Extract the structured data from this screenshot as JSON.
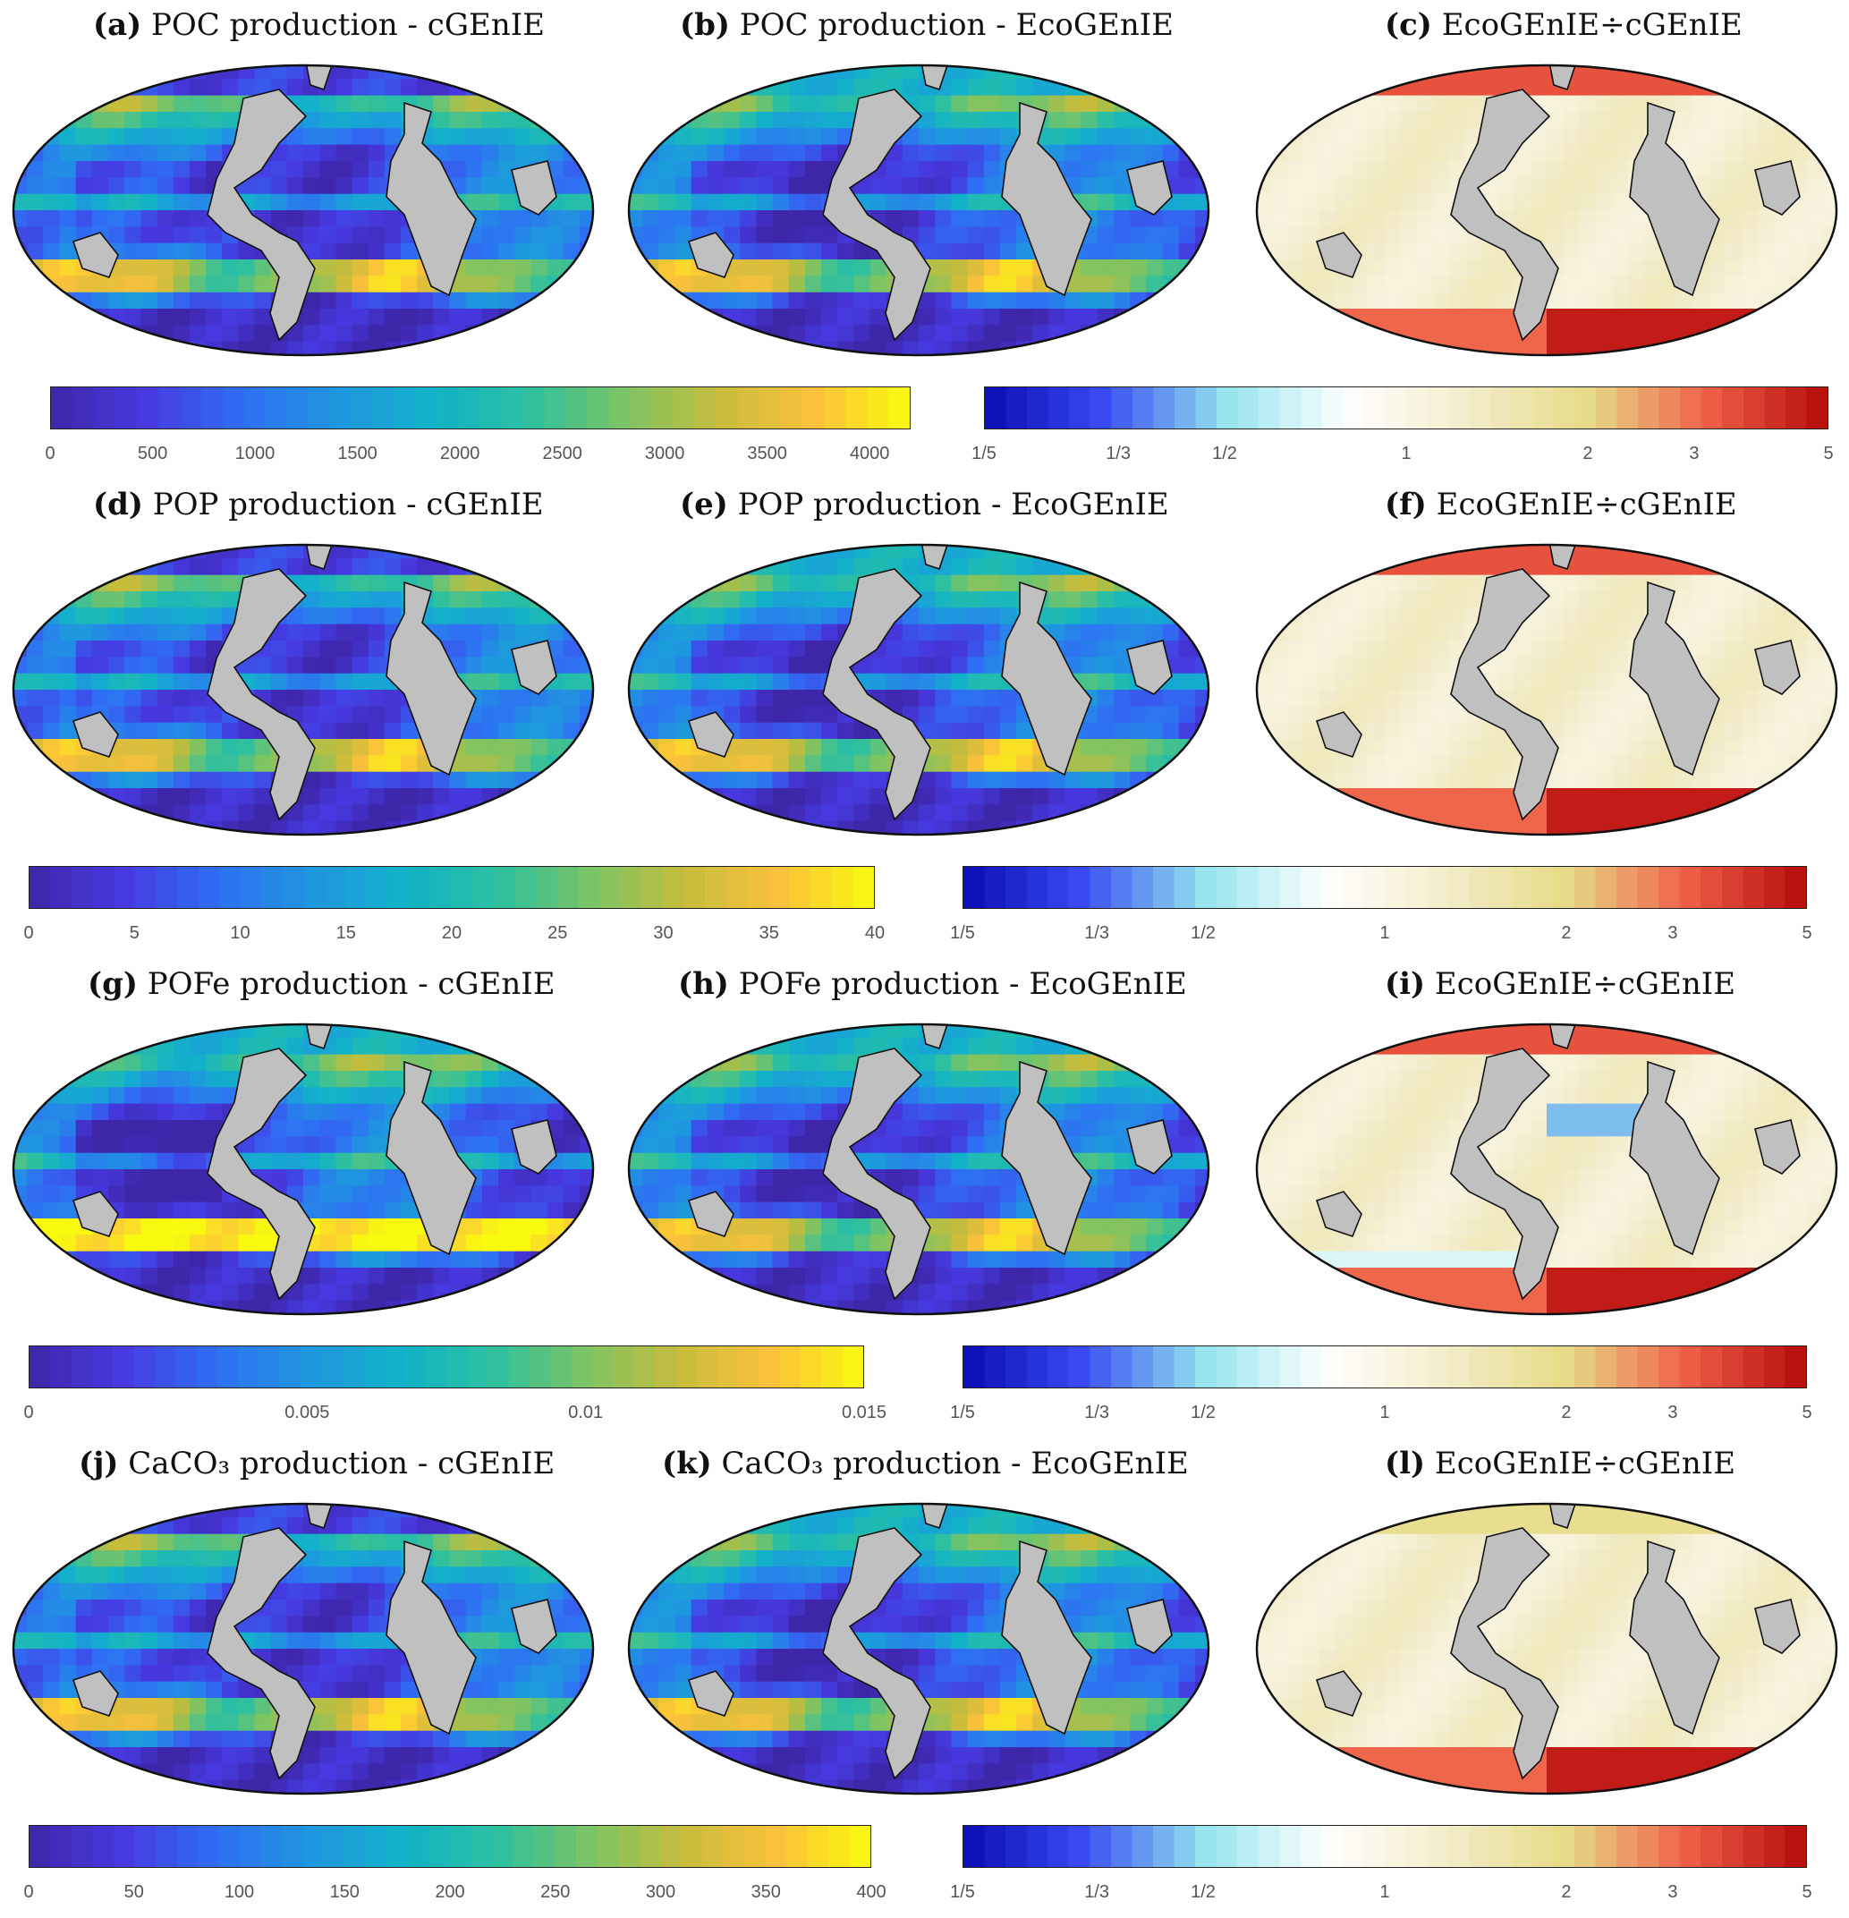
{
  "colormaps": {
    "parula": [
      "#3e26a8",
      "#4639e0",
      "#2f6ff4",
      "#1f96e0",
      "#12b2c9",
      "#2cc0a0",
      "#7cc464",
      "#c6bc3c",
      "#fcc13c",
      "#f9fb0e"
    ],
    "ratio": [
      "#0a0ab4",
      "#3a4df2",
      "#94e4ee",
      "#ffffff",
      "#f3eccb",
      "#e6dc88",
      "#f06048",
      "#b40a0a"
    ]
  },
  "land_color": "#c0c0c0",
  "rows": [
    {
      "titles": [
        {
          "letter": "(a)",
          "text": "POC production - cGEnIE"
        },
        {
          "letter": "(b)",
          "text": "POC production - EcoGEnIE"
        },
        {
          "letter": "(c)",
          "text": "EcoGEnIE÷cGEnIE"
        }
      ],
      "abs_ticks": [
        "0",
        "500",
        "1000",
        "1500",
        "2000",
        "2500",
        "3000",
        "3500",
        "4000"
      ],
      "abs_tick_values": [
        0,
        500,
        1000,
        1500,
        2000,
        2500,
        3000,
        3500,
        4000
      ],
      "abs_max": 4200,
      "ratio_ticks": [
        "1/5",
        "1/3",
        "1/2",
        "1",
        "2",
        "3",
        "5"
      ]
    },
    {
      "titles": [
        {
          "letter": "(d)",
          "text": "POP production - cGEnIE"
        },
        {
          "letter": "(e)",
          "text": "POP production - EcoGEnIE"
        },
        {
          "letter": "(f)",
          "text": "EcoGEnIE÷cGEnIE"
        }
      ],
      "abs_ticks": [
        "0",
        "5",
        "10",
        "15",
        "20",
        "25",
        "30",
        "35",
        "40"
      ],
      "abs_tick_values": [
        0,
        5,
        10,
        15,
        20,
        25,
        30,
        35,
        40
      ],
      "abs_max": 40,
      "ratio_ticks": [
        "1/5",
        "1/3",
        "1/2",
        "1",
        "2",
        "3",
        "5"
      ]
    },
    {
      "titles": [
        {
          "letter": "(g)",
          "text": "POFe production - cGEnIE"
        },
        {
          "letter": "(h)",
          "text": "POFe production - EcoGEnIE"
        },
        {
          "letter": "(i)",
          "text": "EcoGEnIE÷cGEnIE"
        }
      ],
      "abs_ticks": [
        "0",
        "0.005",
        "0.01",
        "0.015"
      ],
      "abs_tick_values": [
        0,
        0.005,
        0.01,
        0.015
      ],
      "abs_max": 0.015,
      "ratio_ticks": [
        "1/5",
        "1/3",
        "1/2",
        "1",
        "2",
        "3",
        "5"
      ]
    },
    {
      "titles": [
        {
          "letter": "(j)",
          "text": "CaCO₃ production - cGEnIE"
        },
        {
          "letter": "(k)",
          "text": "CaCO₃ production - EcoGEnIE"
        },
        {
          "letter": "(l)",
          "text": "EcoGEnIE÷cGEnIE"
        }
      ],
      "abs_ticks": [
        "0",
        "50",
        "100",
        "150",
        "200",
        "250",
        "300",
        "350",
        "400"
      ],
      "abs_tick_values": [
        0,
        50,
        100,
        150,
        200,
        250,
        300,
        350,
        400
      ],
      "abs_max": 400,
      "ratio_ticks": [
        "1/5",
        "1/3",
        "1/2",
        "1",
        "2",
        "3",
        "5"
      ]
    }
  ]
}
